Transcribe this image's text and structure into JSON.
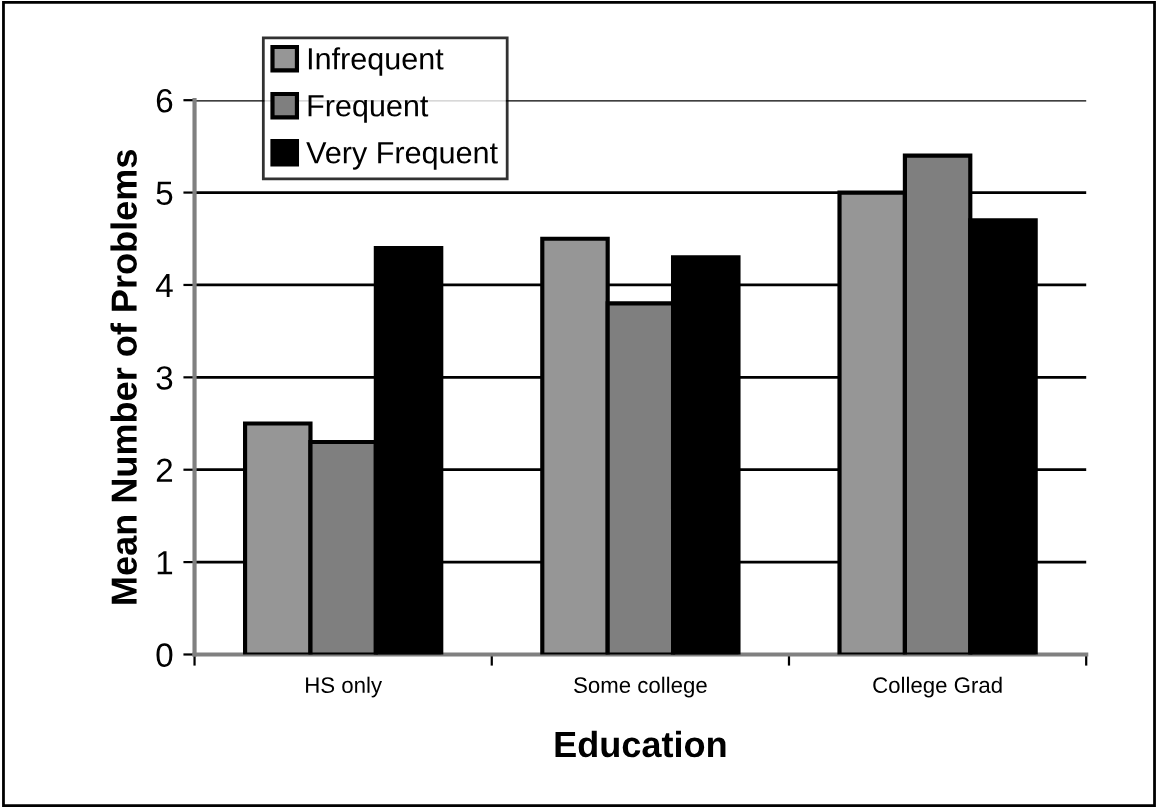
{
  "chart_data": {
    "type": "bar",
    "xlabel": "Education",
    "ylabel": "Mean Number of Problems",
    "categories": [
      "HS only",
      "Some college",
      "College Grad"
    ],
    "series": [
      {
        "name": "Infrequent",
        "color": "#969696",
        "values": [
          2.5,
          4.5,
          5.0
        ]
      },
      {
        "name": "Frequent",
        "color": "#7f7f7f",
        "values": [
          2.3,
          3.8,
          5.4
        ]
      },
      {
        "name": "Very Frequent",
        "color": "#000000",
        "values": [
          4.4,
          4.3,
          4.7
        ]
      }
    ],
    "ylim": [
      0,
      6
    ],
    "yticks": [
      0,
      1,
      2,
      3,
      4,
      5,
      6
    ],
    "grid": "y",
    "legend": "top left"
  }
}
